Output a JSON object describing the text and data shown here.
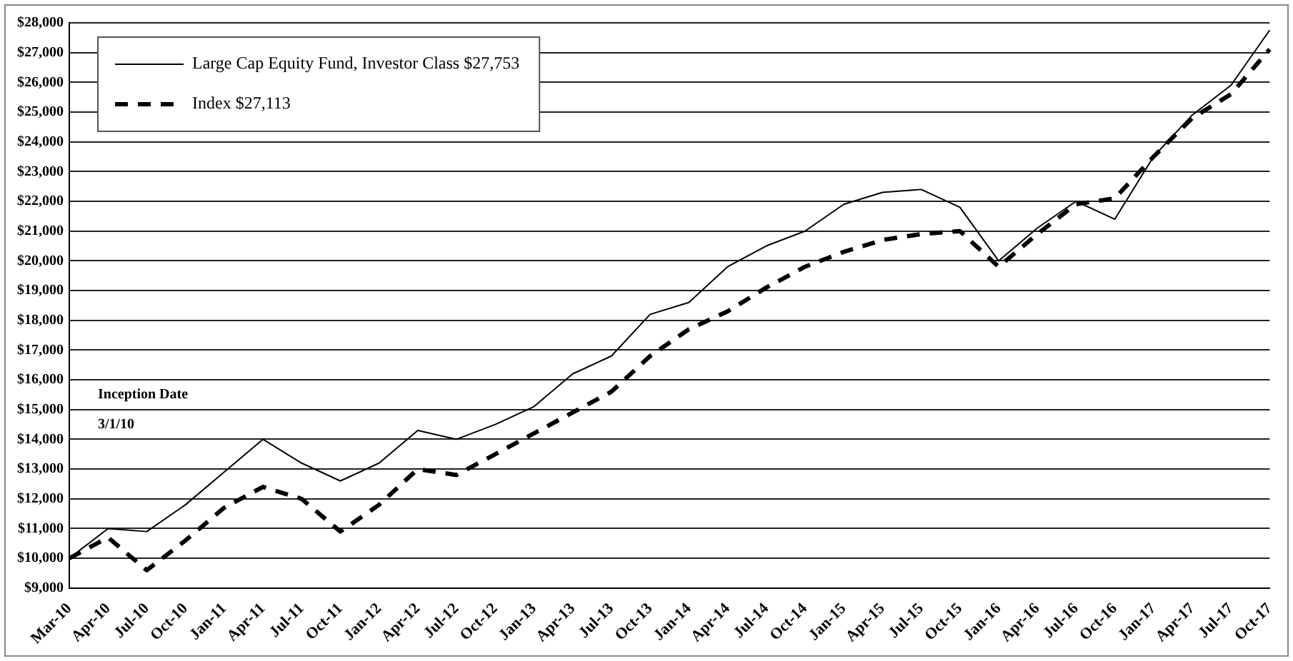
{
  "chart_data": {
    "type": "line",
    "categories": [
      "Mar-10",
      "Apr-10",
      "Jul-10",
      "Oct-10",
      "Jan-11",
      "Apr-11",
      "Jul-11",
      "Oct-11",
      "Jan-12",
      "Apr-12",
      "Jul-12",
      "Oct-12",
      "Jan-13",
      "Apr-13",
      "Jul-13",
      "Oct-13",
      "Jan-14",
      "Apr-14",
      "Jul-14",
      "Oct-14",
      "Jan-15",
      "Apr-15",
      "Jul-15",
      "Oct-15",
      "Jan-16",
      "Apr-16",
      "Jul-16",
      "Oct-16",
      "Jan-17",
      "Apr-17",
      "Jul-17",
      "Oct-17"
    ],
    "series": [
      {
        "name": "Large Cap Equity Fund, Investor Class $27,753",
        "color": "#000000",
        "line_style": "solid",
        "values": [
          10000,
          11000,
          10900,
          11800,
          12900,
          14000,
          13200,
          12600,
          13200,
          14300,
          14000,
          14500,
          15100,
          16200,
          16800,
          18200,
          18600,
          19800,
          20500,
          21000,
          21900,
          22300,
          22400,
          21800,
          20000,
          21100,
          22000,
          21400,
          23500,
          24900,
          25900,
          27753
        ]
      },
      {
        "name": "Index $27,113",
        "color": "#000000",
        "line_style": "dashed",
        "values": [
          10000,
          10700,
          9600,
          10600,
          11700,
          12400,
          12000,
          10900,
          11800,
          13000,
          12800,
          13500,
          14200,
          14900,
          15600,
          16800,
          17700,
          18300,
          19100,
          19800,
          20300,
          20700,
          20900,
          21000,
          19800,
          20900,
          21900,
          22100,
          23500,
          24800,
          25600,
          27113
        ]
      }
    ],
    "ylim": [
      9000,
      28000
    ],
    "yticks": [
      {
        "value": 9000,
        "label": "$9,000"
      },
      {
        "value": 10000,
        "label": "$10,000"
      },
      {
        "value": 11000,
        "label": "$11,000"
      },
      {
        "value": 12000,
        "label": "$12,000"
      },
      {
        "value": 13000,
        "label": "$13,000"
      },
      {
        "value": 14000,
        "label": "$14,000"
      },
      {
        "value": 15000,
        "label": "$15,000"
      },
      {
        "value": 16000,
        "label": "$16,000"
      },
      {
        "value": 17000,
        "label": "$17,000"
      },
      {
        "value": 18000,
        "label": "$18,000"
      },
      {
        "value": 19000,
        "label": "$19,000"
      },
      {
        "value": 20000,
        "label": "$20,000"
      },
      {
        "value": 21000,
        "label": "$21,000"
      },
      {
        "value": 22000,
        "label": "$22,000"
      },
      {
        "value": 23000,
        "label": "$23,000"
      },
      {
        "value": 24000,
        "label": "$24,000"
      },
      {
        "value": 25000,
        "label": "$25,000"
      },
      {
        "value": 26000,
        "label": "$26,000"
      },
      {
        "value": 27000,
        "label": "$27,000"
      },
      {
        "value": 28000,
        "label": "$28,000"
      }
    ],
    "grid": "y",
    "legend": "top left",
    "marker": "none",
    "annotations": [
      "Inception Date",
      "3/1/10"
    ]
  }
}
